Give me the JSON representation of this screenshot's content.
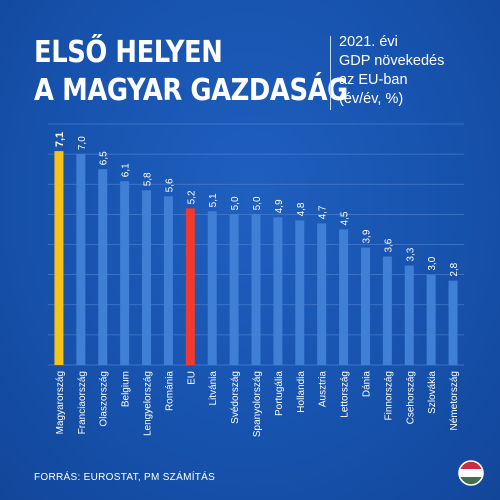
{
  "header": {
    "title_line1": "ELSŐ HELYEN",
    "title_line2": "A MAGYAR GAZDASÁG",
    "subtitle_lines": [
      "2021. évi",
      "GDP növekedés",
      "az EU-ban",
      "(év/év, %)"
    ]
  },
  "footer": {
    "source": "FORRÁS: EUROSTAT, PM SZÁMÍTÁS",
    "flag_icon": "hungary-flag-icon"
  },
  "colors": {
    "bar_default": "#3f7fd6",
    "bar_hungary": "#f7c21a",
    "bar_eu": "#ef3a2c",
    "background": "#1753ae",
    "gridline": "#4d7fcf"
  },
  "chart_data": {
    "type": "bar",
    "orientation": "vertical",
    "categories": [
      "Magyarország",
      "Franciaország",
      "Olaszország",
      "Belgium",
      "Lengyelország",
      "Románia",
      "EU",
      "Litvánia",
      "Svédország",
      "Spanyolország",
      "Portugália",
      "Hollandia",
      "Ausztria",
      "Lettország",
      "Dánia",
      "Finnország",
      "Csehország",
      "Szlovákia",
      "Németország"
    ],
    "values": [
      7.1,
      7.0,
      6.5,
      6.1,
      5.8,
      5.6,
      5.2,
      5.1,
      5.0,
      5.0,
      4.9,
      4.8,
      4.7,
      4.5,
      3.9,
      3.6,
      3.3,
      3.0,
      2.8
    ],
    "value_labels": [
      "7,1",
      "7,0",
      "6,5",
      "6,1",
      "5,8",
      "5,6",
      "5,2",
      "5,1",
      "5,0",
      "5,0",
      "4,9",
      "4,8",
      "4,7",
      "4,5",
      "3,9",
      "3,6",
      "3,3",
      "3,0",
      "2,8"
    ],
    "highlight": {
      "Magyarország": "#f7c21a",
      "EU": "#ef3a2c"
    },
    "ylim": [
      0,
      8
    ],
    "grid": true,
    "title": "",
    "xlabel": "",
    "ylabel": ""
  }
}
